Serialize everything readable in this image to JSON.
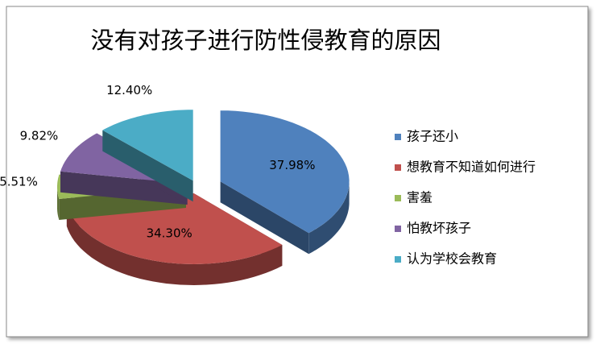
{
  "chart_data": {
    "type": "pie",
    "title": "没有对孩子进行防性侵教育的原因",
    "categories": [
      "孩子还小",
      "想教育不知道如何进行",
      "害羞",
      "怕教坏孩子",
      "认为学校会教育"
    ],
    "values": [
      37.98,
      34.3,
      5.51,
      9.82,
      12.4
    ],
    "value_labels": [
      "37.98%",
      "34.30%",
      "5.51%",
      "9.82%",
      "12.40%"
    ],
    "colors": [
      "#4f81bd",
      "#c0504d",
      "#9bbb59",
      "#8064a2",
      "#4bacc6"
    ],
    "legend": "right"
  }
}
